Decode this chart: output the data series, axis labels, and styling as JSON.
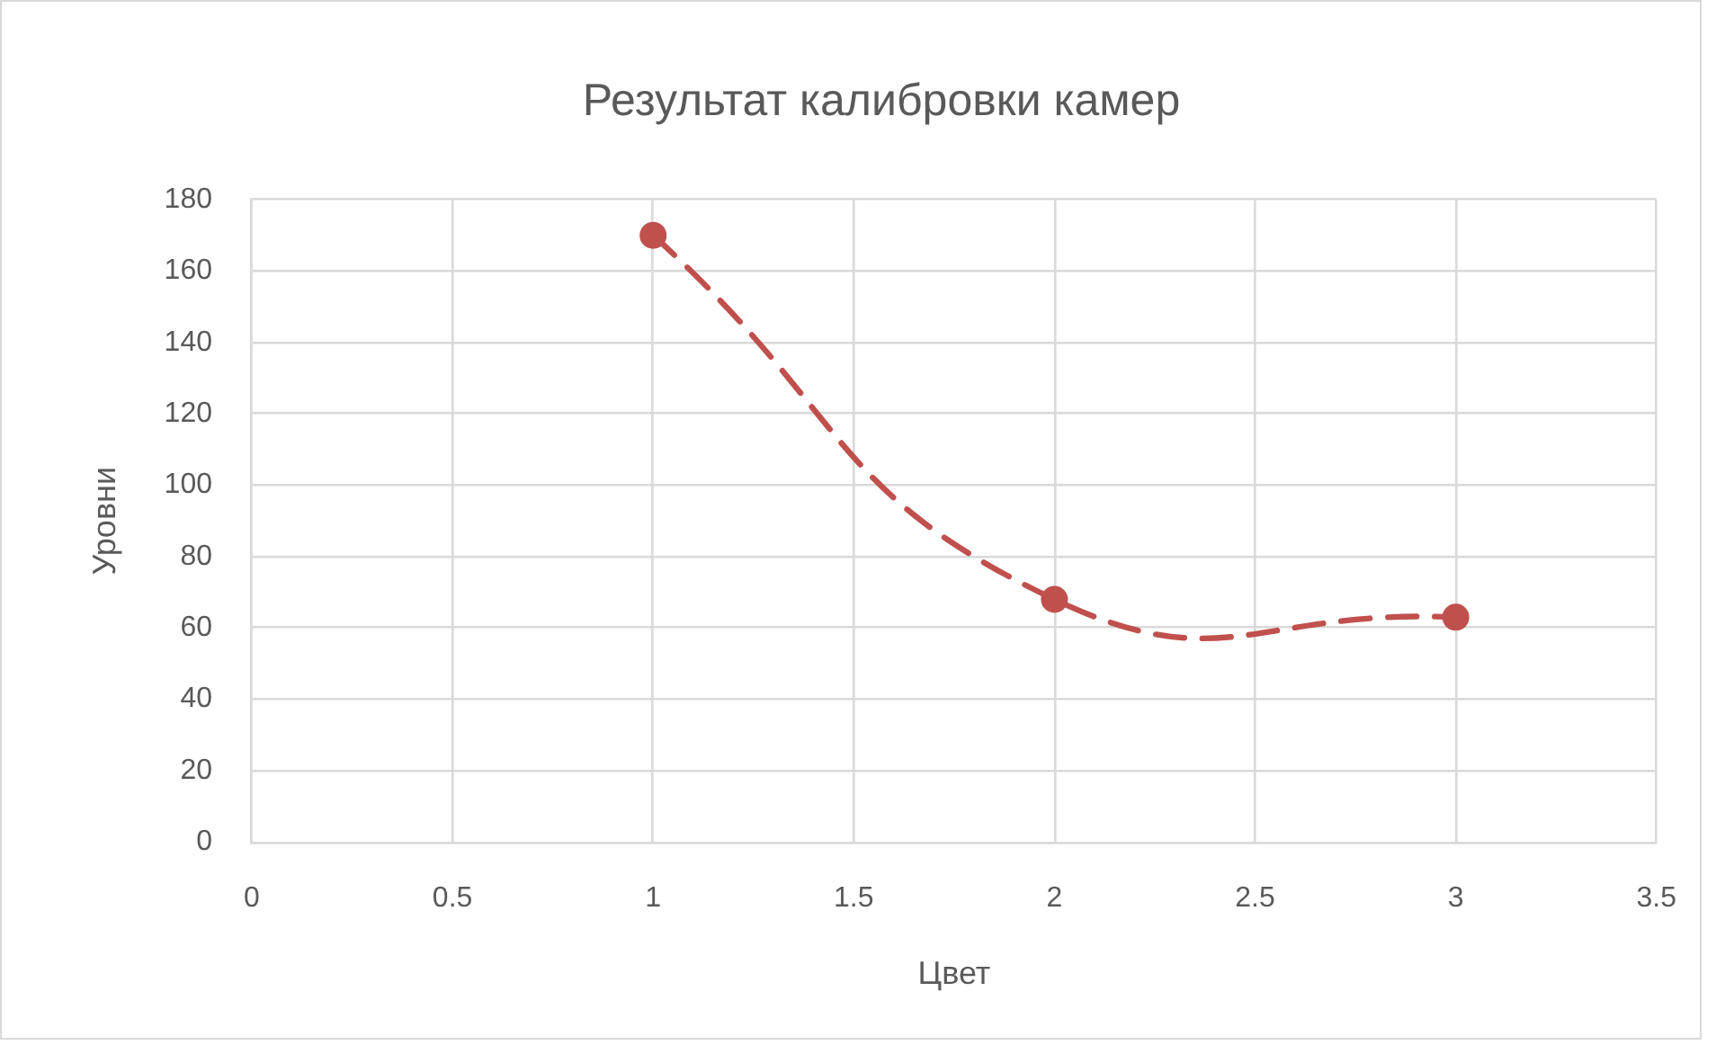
{
  "chart_data": {
    "type": "line",
    "title": "Результат калибровки камер",
    "xlabel": "Цвет",
    "ylabel": "Уровни",
    "x": [
      1,
      2,
      3
    ],
    "series": [
      {
        "color": "#c0504d",
        "values": [
          170,
          68,
          63
        ]
      }
    ],
    "xlim": [
      0,
      3.5
    ],
    "xticks": [
      0,
      0.5,
      1,
      1.5,
      2,
      2.5,
      3,
      3.5
    ],
    "ylim": [
      0,
      180
    ],
    "yticks": [
      0,
      20,
      40,
      60,
      80,
      100,
      120,
      140,
      160,
      180
    ],
    "grid": true,
    "marker": "circle",
    "line_style": "dashed"
  }
}
